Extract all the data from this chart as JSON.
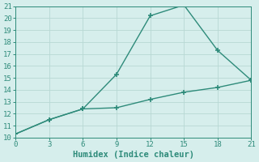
{
  "xlabel": "Humidex (Indice chaleur)",
  "line1_x": [
    0,
    3,
    6,
    9,
    12,
    15,
    18,
    21
  ],
  "line1_y": [
    10.3,
    11.5,
    12.4,
    15.3,
    20.2,
    21.1,
    17.3,
    14.8
  ],
  "line2_x": [
    0,
    3,
    6,
    9,
    12,
    15,
    18,
    21
  ],
  "line2_y": [
    10.3,
    11.5,
    12.4,
    12.5,
    13.2,
    13.8,
    14.2,
    14.8
  ],
  "line_color": "#2e8b7a",
  "bg_color": "#d6eeec",
  "grid_color": "#b8d8d4",
  "xlim": [
    0,
    21
  ],
  "ylim": [
    10,
    21
  ],
  "xticks": [
    0,
    3,
    6,
    9,
    12,
    15,
    18,
    21
  ],
  "yticks": [
    10,
    11,
    12,
    13,
    14,
    15,
    16,
    17,
    18,
    19,
    20,
    21
  ],
  "marker": "+",
  "markersize": 5,
  "linewidth": 1.0,
  "xlabel_fontsize": 7.5,
  "tick_fontsize": 6.5
}
